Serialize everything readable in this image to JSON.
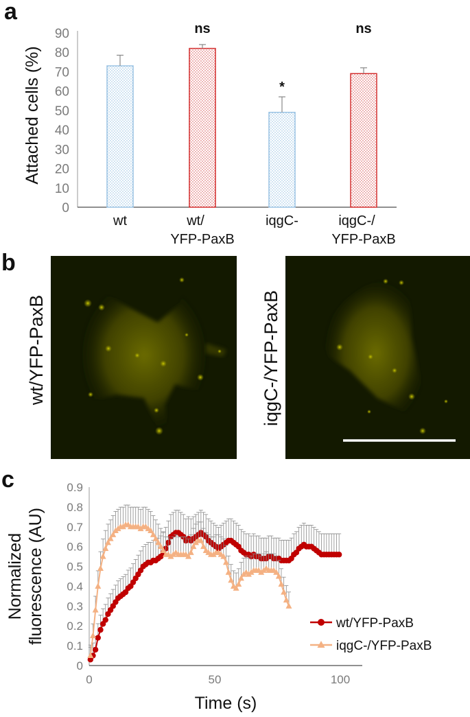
{
  "panels": {
    "a": "a",
    "b": "b",
    "c": "c"
  },
  "chart_data": [
    {
      "type": "bar",
      "panel": "a",
      "categories": [
        "wt",
        "wt/ YFP-PaxB",
        "iqgC-",
        "iqgC-/ YFP-PaxB"
      ],
      "category_lines": [
        [
          "wt"
        ],
        [
          "wt/",
          "YFP-PaxB"
        ],
        [
          "iqgC-"
        ],
        [
          "iqgC-/",
          "YFP-PaxB"
        ]
      ],
      "values": [
        73,
        82,
        49,
        69
      ],
      "errors": [
        5.5,
        2,
        8,
        3
      ],
      "annotations": [
        "",
        "ns",
        "*",
        "ns"
      ],
      "bar_colors": [
        "#9cc4e4",
        "#d32f2f",
        "#9cc4e4",
        "#d32f2f"
      ],
      "ylabel": "Attached cells (%)",
      "ylim": [
        0,
        90
      ],
      "yticks": [
        0,
        10,
        20,
        30,
        40,
        50,
        60,
        70,
        80,
        90
      ],
      "grid": false
    },
    {
      "type": "line",
      "panel": "c",
      "xlabel": "Time (s)",
      "ylabel": "Normalized fluorescence (AU)",
      "ylabel_lines": [
        "Normalized",
        "fluorescence (AU)"
      ],
      "xlim": [
        0,
        100
      ],
      "ylim": [
        0,
        0.9
      ],
      "xticks": [
        0,
        50,
        100
      ],
      "yticks": [
        0,
        0.1,
        0.2,
        0.3,
        0.4,
        0.5,
        0.6,
        0.7,
        0.8,
        0.9
      ],
      "legend_position": "bottom-right",
      "grid": false,
      "series": [
        {
          "name": "wt/YFP-PaxB",
          "color": "#c00000",
          "marker": "circle",
          "points": [
            [
              0.5,
              0.03
            ],
            [
              1.5,
              0.05
            ],
            [
              2.5,
              0.08
            ],
            [
              3.5,
              0.14
            ],
            [
              4.5,
              0.18
            ],
            [
              5.5,
              0.21
            ],
            [
              6.5,
              0.23
            ],
            [
              7.5,
              0.26
            ],
            [
              8.5,
              0.28
            ],
            [
              9.5,
              0.3
            ],
            [
              10.5,
              0.32
            ],
            [
              11.5,
              0.34
            ],
            [
              12.5,
              0.35
            ],
            [
              13.5,
              0.36
            ],
            [
              14.5,
              0.37
            ],
            [
              15.5,
              0.39
            ],
            [
              16.5,
              0.4
            ],
            [
              17.5,
              0.42
            ],
            [
              18.5,
              0.44
            ],
            [
              19.5,
              0.46
            ],
            [
              20.5,
              0.48
            ],
            [
              21.5,
              0.5
            ],
            [
              22.5,
              0.51
            ],
            [
              23.5,
              0.52
            ],
            [
              24.5,
              0.52
            ],
            [
              25.5,
              0.53
            ],
            [
              26.5,
              0.53
            ],
            [
              27.5,
              0.54
            ],
            [
              28.5,
              0.55
            ],
            [
              29.5,
              0.57
            ],
            [
              30.5,
              0.59
            ],
            [
              31.5,
              0.62
            ],
            [
              32.5,
              0.65
            ],
            [
              33.5,
              0.66
            ],
            [
              34.5,
              0.67
            ],
            [
              35.5,
              0.67
            ],
            [
              36.5,
              0.66
            ],
            [
              37.5,
              0.65
            ],
            [
              38.5,
              0.63
            ],
            [
              39.5,
              0.64
            ],
            [
              40.5,
              0.63
            ],
            [
              41.5,
              0.64
            ],
            [
              42.5,
              0.65
            ],
            [
              43.5,
              0.66
            ],
            [
              44.5,
              0.67
            ],
            [
              45.5,
              0.66
            ],
            [
              46.5,
              0.65
            ],
            [
              47.5,
              0.63
            ],
            [
              48.5,
              0.62
            ],
            [
              49.5,
              0.61
            ],
            [
              50.5,
              0.6
            ],
            [
              51.5,
              0.59
            ],
            [
              52.5,
              0.6
            ],
            [
              53.5,
              0.61
            ],
            [
              54.5,
              0.62
            ],
            [
              55.5,
              0.63
            ],
            [
              56.5,
              0.63
            ],
            [
              57.5,
              0.62
            ],
            [
              58.5,
              0.61
            ],
            [
              59.5,
              0.6
            ],
            [
              60.5,
              0.58
            ],
            [
              61.5,
              0.57
            ],
            [
              62.5,
              0.56
            ],
            [
              63.5,
              0.56
            ],
            [
              64.5,
              0.55
            ],
            [
              65.5,
              0.56
            ],
            [
              66.5,
              0.55
            ],
            [
              67.5,
              0.55
            ],
            [
              68.5,
              0.54
            ],
            [
              69.5,
              0.54
            ],
            [
              70.5,
              0.54
            ],
            [
              71.5,
              0.55
            ],
            [
              72.5,
              0.55
            ],
            [
              73.5,
              0.54
            ],
            [
              74.5,
              0.54
            ],
            [
              75.5,
              0.54
            ],
            [
              76.5,
              0.53
            ],
            [
              77.5,
              0.53
            ],
            [
              78.5,
              0.53
            ],
            [
              79.5,
              0.53
            ],
            [
              80.5,
              0.54
            ],
            [
              81.5,
              0.56
            ],
            [
              82.5,
              0.57
            ],
            [
              83.5,
              0.59
            ],
            [
              84.5,
              0.6
            ],
            [
              85.5,
              0.61
            ],
            [
              86.5,
              0.6
            ],
            [
              87.5,
              0.6
            ],
            [
              88.5,
              0.6
            ],
            [
              89.5,
              0.59
            ],
            [
              90.5,
              0.58
            ],
            [
              91.5,
              0.57
            ],
            [
              92.5,
              0.56
            ],
            [
              93.5,
              0.56
            ],
            [
              94.5,
              0.56
            ],
            [
              95.5,
              0.56
            ],
            [
              96.5,
              0.56
            ],
            [
              97.5,
              0.56
            ],
            [
              98.5,
              0.56
            ],
            [
              99.5,
              0.56
            ]
          ]
        },
        {
          "name": "iqgC-/YFP-PaxB",
          "color": "#f4b183",
          "marker": "triangle",
          "points": [
            [
              0.5,
              0.05
            ],
            [
              1.5,
              0.15
            ],
            [
              2.5,
              0.28
            ],
            [
              3.5,
              0.4
            ],
            [
              4.5,
              0.49
            ],
            [
              5.5,
              0.55
            ],
            [
              6.5,
              0.59
            ],
            [
              7.5,
              0.62
            ],
            [
              8.5,
              0.64
            ],
            [
              9.5,
              0.66
            ],
            [
              10.5,
              0.68
            ],
            [
              11.5,
              0.69
            ],
            [
              12.5,
              0.7
            ],
            [
              13.5,
              0.7
            ],
            [
              14.5,
              0.71
            ],
            [
              15.5,
              0.71
            ],
            [
              16.5,
              0.7
            ],
            [
              17.5,
              0.7
            ],
            [
              18.5,
              0.7
            ],
            [
              19.5,
              0.7
            ],
            [
              20.5,
              0.69
            ],
            [
              21.5,
              0.7
            ],
            [
              22.5,
              0.7
            ],
            [
              23.5,
              0.69
            ],
            [
              24.5,
              0.68
            ],
            [
              25.5,
              0.66
            ],
            [
              26.5,
              0.64
            ],
            [
              27.5,
              0.62
            ],
            [
              28.5,
              0.6
            ],
            [
              29.5,
              0.58
            ],
            [
              30.5,
              0.56
            ],
            [
              31.5,
              0.56
            ],
            [
              32.5,
              0.55
            ],
            [
              33.5,
              0.56
            ],
            [
              34.5,
              0.57
            ],
            [
              35.5,
              0.56
            ],
            [
              36.5,
              0.56
            ],
            [
              37.5,
              0.56
            ],
            [
              38.5,
              0.56
            ],
            [
              39.5,
              0.55
            ],
            [
              40.5,
              0.57
            ],
            [
              41.5,
              0.6
            ],
            [
              42.5,
              0.62
            ],
            [
              43.5,
              0.63
            ],
            [
              44.5,
              0.63
            ],
            [
              45.5,
              0.6
            ],
            [
              46.5,
              0.58
            ],
            [
              47.5,
              0.57
            ],
            [
              48.5,
              0.56
            ],
            [
              49.5,
              0.56
            ],
            [
              50.5,
              0.57
            ],
            [
              51.5,
              0.57
            ],
            [
              52.5,
              0.56
            ],
            [
              53.5,
              0.55
            ],
            [
              54.5,
              0.52
            ],
            [
              55.5,
              0.47
            ],
            [
              56.5,
              0.43
            ],
            [
              57.5,
              0.4
            ],
            [
              58.5,
              0.39
            ],
            [
              59.5,
              0.41
            ],
            [
              60.5,
              0.44
            ],
            [
              61.5,
              0.46
            ],
            [
              62.5,
              0.47
            ],
            [
              63.5,
              0.46
            ],
            [
              64.5,
              0.47
            ],
            [
              65.5,
              0.48
            ],
            [
              66.5,
              0.48
            ],
            [
              67.5,
              0.48
            ],
            [
              68.5,
              0.47
            ],
            [
              69.5,
              0.48
            ],
            [
              70.5,
              0.49
            ],
            [
              71.5,
              0.48
            ],
            [
              72.5,
              0.48
            ],
            [
              73.5,
              0.48
            ],
            [
              74.5,
              0.47
            ],
            [
              75.5,
              0.45
            ],
            [
              76.5,
              0.41
            ],
            [
              77.5,
              0.37
            ],
            [
              78.5,
              0.33
            ],
            [
              79.5,
              0.3
            ]
          ]
        }
      ]
    }
  ],
  "images": [
    {
      "label": "wt/YFP-PaxB"
    },
    {
      "label": "iqgC-/YFP-PaxB"
    }
  ]
}
